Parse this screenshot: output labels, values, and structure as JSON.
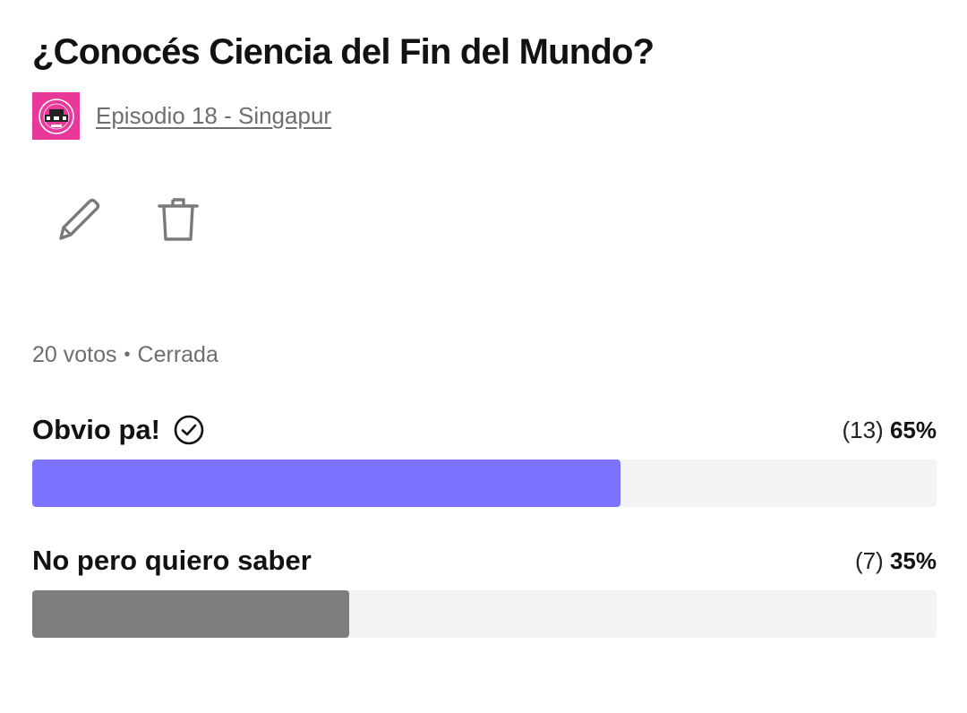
{
  "poll": {
    "title": "¿Conocés Ciencia del Fin del Mundo?",
    "episode_link": "Episodio 18 - Singapur",
    "votes": "20 votos",
    "separator": "•",
    "status": "Cerrada"
  },
  "options": [
    {
      "label": "Obvio pa!",
      "count": "(13)",
      "percent": "65%",
      "fraction": 0.65,
      "color": "#7b73ff",
      "selected": true
    },
    {
      "label": "No pero quiero saber",
      "count": "(7)",
      "percent": "35%",
      "fraction": 0.35,
      "color": "#7e7e7e",
      "selected": false
    }
  ],
  "colors": {
    "thumbnail": "#e8389a",
    "muted_text": "#6e6e6e",
    "track": "#f3f3f3"
  },
  "icons": {
    "edit": "pencil-icon",
    "delete": "trash-icon",
    "selected": "check-circle-icon"
  }
}
